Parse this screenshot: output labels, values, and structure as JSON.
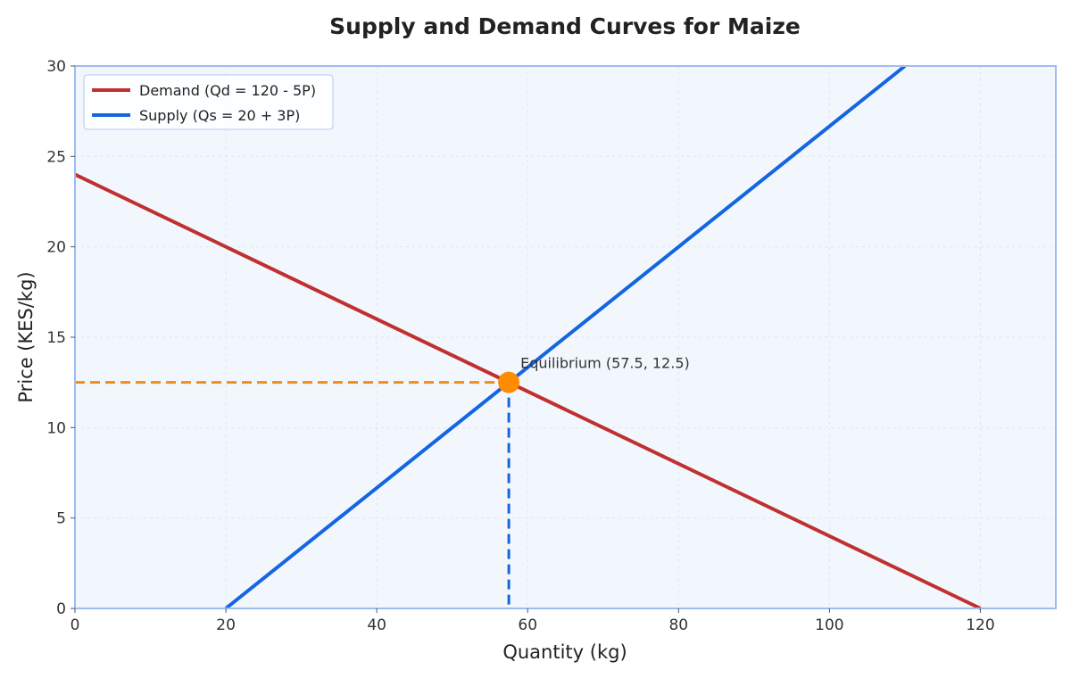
{
  "chart_data": {
    "type": "line",
    "title": "Supply and Demand Curves for Maize",
    "xlabel": "Quantity (kg)",
    "ylabel": "Price (KES/kg)",
    "xlim": [
      0,
      130
    ],
    "ylim": [
      0,
      30
    ],
    "xticks": [
      0,
      20,
      40,
      60,
      80,
      100,
      120
    ],
    "yticks": [
      0,
      5,
      10,
      15,
      20,
      25,
      30
    ],
    "grid": true,
    "legend_position": "top-left",
    "series": [
      {
        "name": "Demand (Qd = 120 - 5P)",
        "color": "#c03030",
        "x": [
          0,
          120
        ],
        "y": [
          24,
          0
        ]
      },
      {
        "name": "Supply (Qs = 20 + 3P)",
        "color": "#1565e0",
        "x": [
          20,
          110
        ],
        "y": [
          0,
          30
        ]
      }
    ],
    "equilibrium": {
      "x": 57.5,
      "y": 12.5,
      "label": "Equilibrium (57.5, 12.5)",
      "color": "#ff8c00",
      "hline_color": "#f08c1a",
      "vline_color": "#1565e0"
    },
    "colors": {
      "plot_background": "#f2f7fd",
      "frame": "#9ebcf0",
      "grid": "#dfe6f0"
    }
  }
}
